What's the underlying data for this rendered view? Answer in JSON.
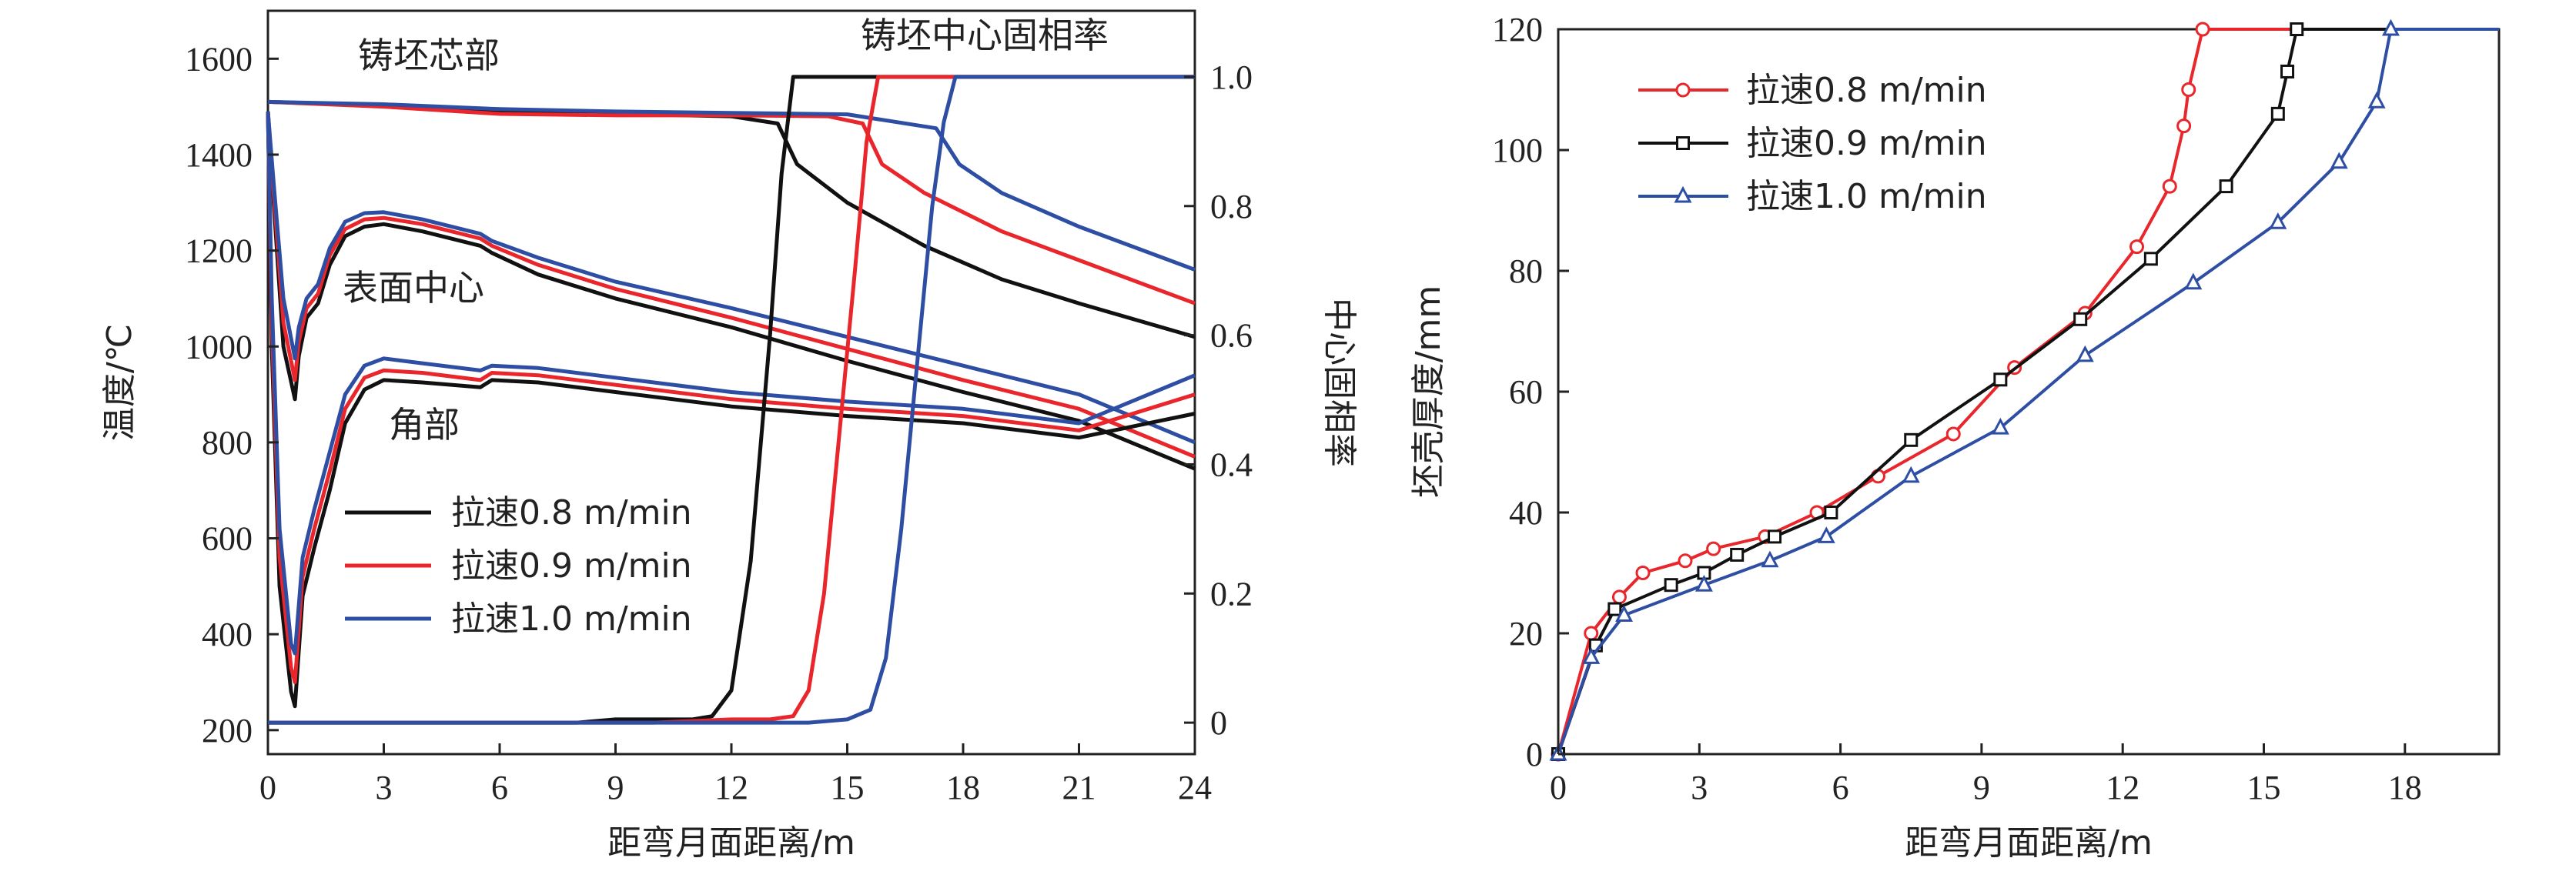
{
  "colors": {
    "s08": "#111111",
    "s09": "#e8262b",
    "s10": "#2e4ea3"
  },
  "chart_data": [
    {
      "type": "line",
      "xlabel": "距弯月面距离/m",
      "ylabel": "温度/℃",
      "y2label": "中心固相率",
      "xlim": [
        0,
        24
      ],
      "ylim": [
        150,
        1700
      ],
      "y2lim": [
        -0.0487,
        1.1024
      ],
      "xticks": [
        0,
        3,
        6,
        9,
        12,
        15,
        18,
        21,
        24
      ],
      "yticks": [
        200,
        400,
        600,
        800,
        1000,
        1200,
        1400,
        1600
      ],
      "y2ticks": [
        0,
        0.2,
        0.4,
        0.6,
        0.8,
        1.0
      ],
      "y2ticklabels": [
        "0",
        "0.2",
        "0.4",
        "0.6",
        "0.8",
        "1.0"
      ],
      "annotations": {
        "core": "铸坯芯部",
        "fraction": "铸坯中心固相率",
        "surface": "表面中心",
        "corner": "角部"
      },
      "legend": {
        "position": "lower-left",
        "entries": [
          "拉速0.8 m/min",
          "拉速0.9 m/min",
          "拉速1.0 m/min"
        ]
      },
      "series": [
        {
          "name": "拉速0.8 m/min",
          "color_key": "s08",
          "axis": "left",
          "group": "core",
          "x": [
            0,
            3,
            6,
            9,
            12,
            13.2,
            13.7,
            15,
            17,
            19,
            21,
            24
          ],
          "y": [
            1510,
            1503,
            1490,
            1485,
            1480,
            1465,
            1380,
            1300,
            1210,
            1140,
            1090,
            1020
          ]
        },
        {
          "name": "拉速0.9 m/min",
          "color_key": "s09",
          "axis": "left",
          "group": "core",
          "x": [
            0,
            3,
            6,
            9,
            12,
            14.5,
            15.4,
            15.9,
            17,
            19,
            21,
            24
          ],
          "y": [
            1510,
            1500,
            1485,
            1482,
            1482,
            1480,
            1465,
            1380,
            1320,
            1240,
            1180,
            1090
          ]
        },
        {
          "name": "拉速1.0 m/min",
          "color_key": "s10",
          "axis": "left",
          "group": "core",
          "x": [
            0,
            3,
            6,
            9,
            12,
            15,
            17.3,
            17.9,
            19,
            21,
            24
          ],
          "y": [
            1510,
            1505,
            1495,
            1490,
            1487,
            1484,
            1455,
            1380,
            1320,
            1250,
            1160
          ]
        },
        {
          "name": "拉速0.8 m/min",
          "color_key": "s08",
          "axis": "left",
          "group": "surface",
          "x": [
            0,
            0.15,
            0.4,
            0.7,
            0.8,
            1.0,
            1.3,
            1.6,
            2.0,
            2.5,
            3.0,
            4.0,
            5.5,
            5.8,
            7,
            9,
            12,
            15,
            18,
            21,
            24
          ],
          "y": [
            1490,
            1300,
            1000,
            890,
            980,
            1060,
            1090,
            1170,
            1230,
            1250,
            1255,
            1240,
            1210,
            1195,
            1150,
            1100,
            1040,
            970,
            905,
            845,
            745
          ]
        },
        {
          "name": "拉速0.9 m/min",
          "color_key": "s09",
          "axis": "left",
          "group": "surface",
          "x": [
            0,
            0.15,
            0.4,
            0.7,
            0.8,
            1.0,
            1.3,
            1.6,
            2.0,
            2.5,
            3.0,
            4.0,
            5.5,
            5.8,
            7,
            9,
            12,
            15,
            18,
            21,
            24
          ],
          "y": [
            1490,
            1320,
            1050,
            930,
            1010,
            1080,
            1110,
            1190,
            1245,
            1265,
            1268,
            1255,
            1225,
            1210,
            1170,
            1120,
            1060,
            995,
            930,
            870,
            770
          ]
        },
        {
          "name": "拉速1.0 m/min",
          "color_key": "s10",
          "axis": "left",
          "group": "surface",
          "x": [
            0,
            0.15,
            0.4,
            0.7,
            0.8,
            1.0,
            1.3,
            1.6,
            2.0,
            2.5,
            3.0,
            4.0,
            5.5,
            5.8,
            7,
            9,
            12,
            15,
            18,
            21,
            24
          ],
          "y": [
            1490,
            1340,
            1100,
            975,
            1040,
            1100,
            1130,
            1205,
            1260,
            1278,
            1280,
            1265,
            1235,
            1220,
            1185,
            1135,
            1080,
            1020,
            960,
            900,
            800
          ]
        },
        {
          "name": "拉速0.8 m/min",
          "color_key": "s08",
          "axis": "left",
          "group": "corner",
          "x": [
            0,
            0.1,
            0.3,
            0.6,
            0.7,
            0.9,
            1.2,
            1.6,
            2.0,
            2.5,
            3.0,
            4.0,
            5.5,
            5.8,
            7,
            9,
            12,
            15,
            18,
            21,
            24
          ],
          "y": [
            1490,
            1000,
            500,
            280,
            250,
            480,
            580,
            700,
            840,
            910,
            930,
            925,
            915,
            930,
            925,
            905,
            875,
            855,
            840,
            810,
            860
          ]
        },
        {
          "name": "拉速0.9 m/min",
          "color_key": "s09",
          "axis": "left",
          "group": "corner",
          "x": [
            0,
            0.1,
            0.3,
            0.6,
            0.7,
            0.9,
            1.2,
            1.6,
            2.0,
            2.5,
            3.0,
            4.0,
            5.5,
            5.8,
            7,
            9,
            12,
            15,
            18,
            21,
            24
          ],
          "y": [
            1490,
            1050,
            560,
            330,
            300,
            520,
            620,
            740,
            870,
            935,
            950,
            945,
            930,
            945,
            940,
            920,
            890,
            870,
            855,
            825,
            900
          ]
        },
        {
          "name": "拉速1.0 m/min",
          "color_key": "s10",
          "axis": "left",
          "group": "corner",
          "x": [
            0,
            0.1,
            0.3,
            0.6,
            0.7,
            0.9,
            1.2,
            1.6,
            2.0,
            2.5,
            3.0,
            4.0,
            5.5,
            5.8,
            7,
            9,
            12,
            15,
            18,
            21,
            24
          ],
          "y": [
            1490,
            1100,
            620,
            380,
            360,
            560,
            660,
            780,
            900,
            960,
            975,
            965,
            950,
            960,
            955,
            935,
            905,
            885,
            870,
            840,
            940
          ]
        },
        {
          "name": "拉速0.8 m/min",
          "color_key": "s08",
          "axis": "right",
          "group": "fraction",
          "x": [
            0,
            8,
            9,
            10,
            11,
            11.5,
            12,
            12.5,
            13,
            13.3,
            13.6,
            24
          ],
          "y": [
            0,
            0,
            0.005,
            0.005,
            0.005,
            0.01,
            0.05,
            0.25,
            0.6,
            0.85,
            1.0,
            1.0
          ]
        },
        {
          "name": "拉速0.9 m/min",
          "color_key": "s09",
          "axis": "right",
          "group": "fraction",
          "x": [
            0,
            10,
            12,
            13,
            13.6,
            14,
            14.4,
            14.8,
            15.2,
            15.5,
            15.8,
            24
          ],
          "y": [
            0,
            0,
            0.005,
            0.005,
            0.01,
            0.05,
            0.2,
            0.45,
            0.7,
            0.9,
            1.0,
            1.0
          ]
        },
        {
          "name": "拉速1.0 m/min",
          "color_key": "s10",
          "axis": "right",
          "group": "fraction",
          "x": [
            0,
            12,
            14,
            15,
            15.6,
            16,
            16.4,
            16.8,
            17.2,
            17.5,
            17.8,
            24
          ],
          "y": [
            0,
            0,
            0,
            0.005,
            0.02,
            0.1,
            0.3,
            0.55,
            0.8,
            0.93,
            1.0,
            1.0
          ]
        }
      ]
    },
    {
      "type": "line",
      "xlabel": "距弯月面距离/m",
      "ylabel": "坯壳厚度/mm",
      "xlim": [
        0,
        20
      ],
      "ylim": [
        0,
        120
      ],
      "xticks": [
        0,
        3,
        6,
        9,
        12,
        15,
        18
      ],
      "yticks": [
        0,
        20,
        40,
        60,
        80,
        100,
        120
      ],
      "legend": {
        "position": "top-left",
        "entries": [
          "拉速0.8 m/min",
          "拉速0.9 m/min",
          "拉速1.0 m/min"
        ]
      },
      "series": [
        {
          "name": "拉速0.8 m/min",
          "color_key": "s08r",
          "marker": "circle",
          "x": [
            0,
            0.7,
            1.3,
            1.8,
            2.7,
            3.3,
            4.4,
            5.5,
            6.8,
            8.4,
            9.7,
            11.2,
            12.3,
            13.0,
            13.3,
            13.4,
            13.7,
            20
          ],
          "y": [
            0,
            20,
            26,
            30,
            32,
            34,
            36,
            40,
            46,
            53,
            64,
            73,
            84,
            94,
            104,
            110,
            120,
            120
          ]
        },
        {
          "name": "拉速0.9 m/min",
          "color_key": "s09k",
          "marker": "square",
          "x": [
            0,
            0.8,
            1.2,
            2.4,
            3.1,
            3.8,
            4.6,
            5.8,
            7.5,
            9.4,
            11.1,
            12.6,
            14.2,
            15.3,
            15.5,
            15.7,
            20
          ],
          "y": [
            0,
            18,
            24,
            28,
            30,
            33,
            36,
            40,
            52,
            62,
            72,
            82,
            94,
            106,
            113,
            120,
            120
          ]
        },
        {
          "name": "拉速1.0 m/min",
          "color_key": "s10b",
          "marker": "triangle",
          "x": [
            0,
            0.7,
            1.4,
            3.1,
            4.5,
            5.7,
            7.5,
            9.4,
            11.2,
            13.5,
            15.3,
            16.6,
            17.4,
            17.7,
            20
          ],
          "y": [
            0,
            16,
            23,
            28,
            32,
            36,
            46,
            54,
            66,
            78,
            88,
            98,
            108,
            120,
            120
          ]
        }
      ]
    }
  ],
  "palette2": {
    "s08r": "#e8262b",
    "s09k": "#111111",
    "s10b": "#2e4ea3"
  }
}
